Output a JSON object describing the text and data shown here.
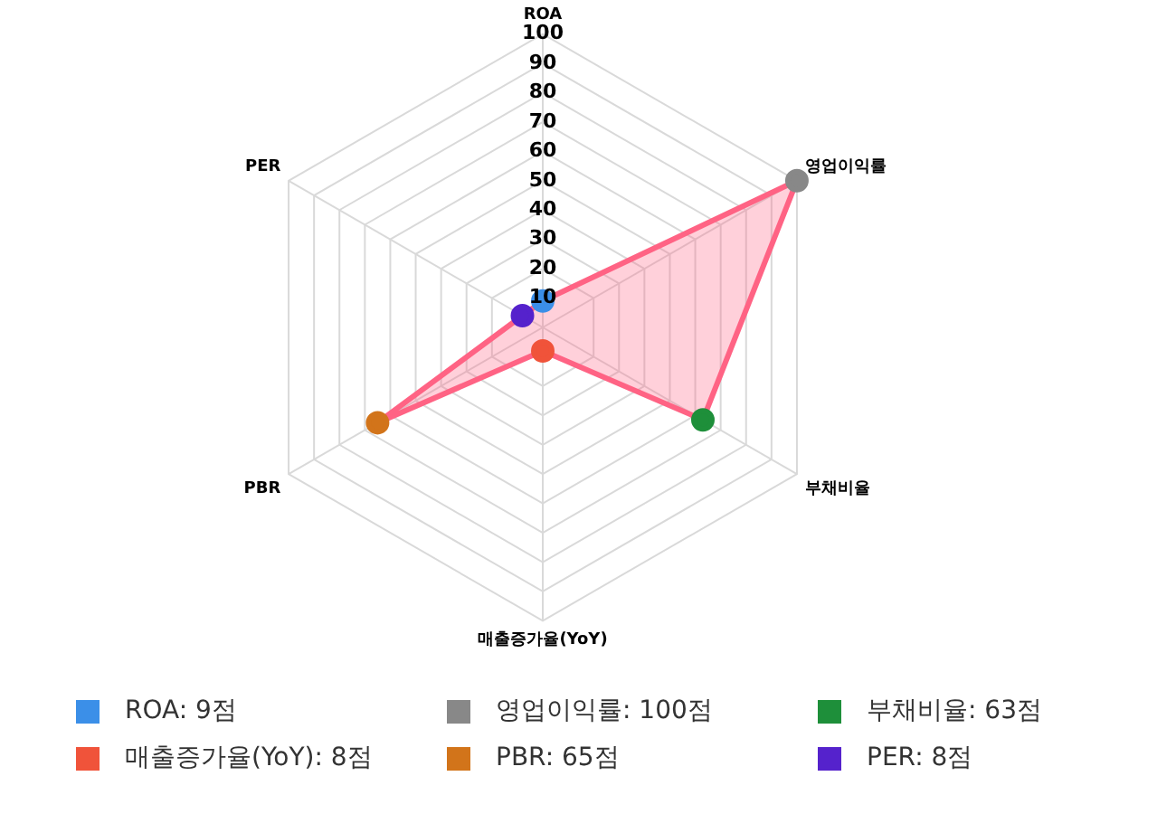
{
  "chart_data": {
    "type": "radar",
    "categories": [
      "ROA",
      "영업이익률",
      "부채비율",
      "매출증가율(YoY)",
      "PBR",
      "PER"
    ],
    "series": [
      {
        "color": "#ff6384",
        "values": [
          9,
          100,
          63,
          8,
          65,
          8
        ],
        "colors": [
          "#3b8fe8",
          "#888888",
          "#1e8f3a",
          "#f0533a",
          "#d2741a",
          "#5522cc"
        ]
      }
    ],
    "annotations": [
      "ROA: 9점",
      "영업이익률: 100점",
      "부채비율: 63점",
      "매출증가율(YoY): 8점",
      "PBR: 65점",
      "PER: 8점"
    ],
    "ylim": [
      0,
      100
    ],
    "yticks": [
      10,
      20,
      30,
      40,
      50,
      60,
      70,
      80,
      90,
      100
    ],
    "grid": true,
    "marker": "circle"
  }
}
